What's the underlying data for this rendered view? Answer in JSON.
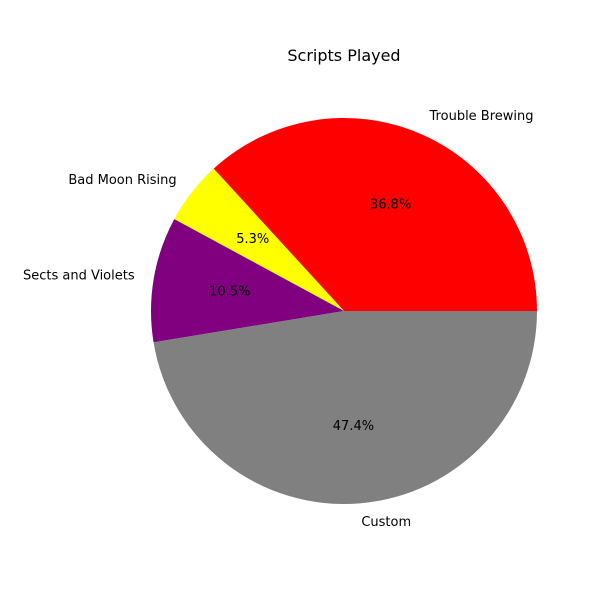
{
  "chart_data": {
    "type": "pie",
    "title": "Scripts Played",
    "slices": [
      {
        "label": "Trouble Brewing",
        "percent": 36.8,
        "percent_label": "36.8%",
        "color": "#ff0000"
      },
      {
        "label": "Bad Moon Rising",
        "percent": 5.3,
        "percent_label": "5.3%",
        "color": "#ffff00"
      },
      {
        "label": "Sects and Violets",
        "percent": 10.5,
        "percent_label": "10.5%",
        "color": "#800080"
      },
      {
        "label": "Custom",
        "percent": 47.4,
        "percent_label": "47.4%",
        "color": "#808080"
      }
    ]
  }
}
